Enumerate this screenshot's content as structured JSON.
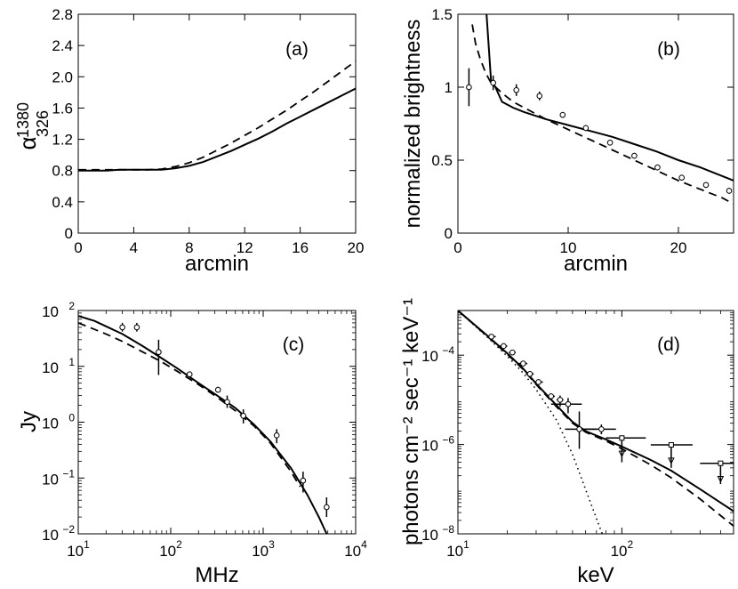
{
  "chart_data": [
    {
      "type": "line",
      "panel_label": "(a)",
      "xlabel": "arcmin",
      "ylabel_base": "α",
      "ylabel_sup": "1380",
      "ylabel_sub": "326",
      "xscale": "linear",
      "yscale": "linear",
      "xlim": [
        0,
        20
      ],
      "ylim": [
        0,
        2.8
      ],
      "xticks": [
        0,
        4,
        8,
        12,
        16,
        20
      ],
      "xtick_labels": [
        "0",
        "4",
        "8",
        "12",
        "16",
        "20"
      ],
      "yticks": [
        0,
        0.4,
        0.8,
        1.2,
        1.6,
        2.0,
        2.4,
        2.8
      ],
      "ytick_labels": [
        "0",
        "0.4",
        "0.8",
        "1.2",
        "1.6",
        "2.0",
        "2.4",
        "2.8"
      ],
      "series": [
        {
          "name": "solid",
          "style": "solid",
          "x": [
            0,
            1,
            2,
            3,
            4,
            5,
            6,
            7,
            8,
            9,
            10,
            11,
            12,
            13,
            14,
            15,
            16,
            17,
            18,
            19,
            20
          ],
          "y": [
            0.8,
            0.8,
            0.8,
            0.81,
            0.81,
            0.81,
            0.81,
            0.83,
            0.86,
            0.91,
            0.98,
            1.05,
            1.13,
            1.21,
            1.3,
            1.4,
            1.49,
            1.58,
            1.67,
            1.76,
            1.85
          ]
        },
        {
          "name": "dashed",
          "style": "dashed",
          "x": [
            0,
            1,
            2,
            3,
            4,
            5,
            6,
            7,
            8,
            9,
            10,
            11,
            12,
            13,
            14,
            15,
            16,
            17,
            18,
            19,
            20
          ],
          "y": [
            0.81,
            0.81,
            0.81,
            0.81,
            0.81,
            0.81,
            0.82,
            0.85,
            0.9,
            0.97,
            1.06,
            1.15,
            1.25,
            1.35,
            1.46,
            1.57,
            1.69,
            1.81,
            1.94,
            2.07,
            2.2
          ]
        }
      ]
    },
    {
      "type": "line",
      "panel_label": "(b)",
      "xlabel": "arcmin",
      "ylabel": "normalized brightness",
      "xscale": "linear",
      "yscale": "linear",
      "xlim": [
        0,
        25
      ],
      "ylim": [
        0,
        1.5
      ],
      "xticks": [
        0,
        10,
        20
      ],
      "xtick_labels": [
        "0",
        "10",
        "20"
      ],
      "yticks": [
        0,
        0.5,
        1,
        1.5
      ],
      "ytick_labels": [
        "0",
        "0.5",
        "1",
        "1.5"
      ],
      "series": [
        {
          "name": "solid",
          "style": "solid",
          "x": [
            2.6,
            3.0,
            3.4,
            4.0,
            5,
            6,
            8,
            10,
            12,
            14,
            16,
            18,
            20,
            22,
            25
          ],
          "y": [
            1.5,
            1.05,
            1.0,
            0.9,
            0.86,
            0.83,
            0.78,
            0.74,
            0.7,
            0.66,
            0.61,
            0.56,
            0.5,
            0.45,
            0.36
          ]
        },
        {
          "name": "dashed",
          "style": "dashed",
          "x": [
            1.3,
            1.6,
            2.0,
            2.5,
            3,
            4,
            5,
            6,
            8,
            10,
            12,
            14,
            16,
            18,
            20,
            22,
            24,
            25
          ],
          "y": [
            1.43,
            1.3,
            1.2,
            1.1,
            1.03,
            0.96,
            0.9,
            0.86,
            0.78,
            0.71,
            0.64,
            0.57,
            0.5,
            0.43,
            0.36,
            0.3,
            0.24,
            0.2
          ]
        },
        {
          "name": "data",
          "style": "points",
          "x": [
            1.0,
            3.2,
            5.3,
            7.4,
            9.5,
            11.6,
            13.8,
            16.0,
            18.1,
            20.3,
            22.5,
            24.6
          ],
          "y": [
            1.0,
            1.03,
            0.98,
            0.94,
            0.81,
            0.72,
            0.62,
            0.53,
            0.45,
            0.38,
            0.33,
            0.29
          ],
          "err": [
            0.13,
            0.05,
            0.04,
            0.03,
            0.02,
            0.02,
            0.02,
            0.02,
            0.02,
            0.02,
            0.02,
            0.02
          ]
        }
      ]
    },
    {
      "type": "line",
      "panel_label": "(c)",
      "xlabel": "MHz",
      "ylabel": "Jy",
      "xscale": "log",
      "yscale": "log",
      "xlim": [
        10,
        10000
      ],
      "ylim": [
        0.01,
        100
      ],
      "xticks": [
        10,
        100,
        1000,
        10000
      ],
      "xtick_base": [
        "10",
        "10",
        "10",
        "10"
      ],
      "xtick_exp": [
        "1",
        "2",
        "3",
        "4"
      ],
      "yticks": [
        0.01,
        0.1,
        1,
        10,
        100
      ],
      "ytick_base": [
        "10",
        "10",
        "10",
        "10",
        "10"
      ],
      "ytick_exp": [
        "−2",
        "−1",
        "0",
        "1",
        "2"
      ],
      "series": [
        {
          "name": "solid",
          "style": "solid",
          "x": [
            10,
            15,
            20,
            30,
            50,
            80,
            120,
            200,
            300,
            500,
            800,
            1200,
            2000,
            3000,
            4000,
            5000
          ],
          "y": [
            80,
            65,
            52,
            38,
            23,
            14,
            9,
            5,
            3.2,
            1.8,
            0.9,
            0.45,
            0.15,
            0.05,
            0.02,
            0.009
          ]
        },
        {
          "name": "dashed",
          "style": "dashed",
          "x": [
            10,
            15,
            20,
            30,
            50,
            80,
            120,
            200,
            300,
            500,
            800,
            1200,
            2000,
            2500
          ],
          "y": [
            60,
            46,
            38,
            28,
            18,
            12,
            8,
            4.7,
            3.0,
            1.6,
            0.85,
            0.42,
            0.13,
            0.07
          ]
        },
        {
          "name": "data",
          "style": "points",
          "x": [
            30,
            43,
            74,
            160,
            325,
            408,
            610,
            1400,
            2700,
            4850
          ],
          "y": [
            50,
            50,
            18,
            7.2,
            3.8,
            2.3,
            1.3,
            0.58,
            0.09,
            0.03
          ],
          "ylo": [
            42,
            42,
            7,
            6.5,
            3.4,
            1.8,
            0.95,
            0.42,
            0.055,
            0.02
          ],
          "yhi": [
            60,
            60,
            30,
            8.0,
            4.3,
            3.0,
            1.7,
            0.75,
            0.13,
            0.045
          ]
        }
      ]
    },
    {
      "type": "line",
      "panel_label": "(d)",
      "xlabel": "keV",
      "ylabel": "photons cm⁻² sec⁻¹ keV⁻¹",
      "xscale": "log",
      "yscale": "log",
      "xlim": [
        10,
        480
      ],
      "ylim": [
        1e-08,
        0.001
      ],
      "xticks": [
        10,
        100
      ],
      "xtick_base": [
        "10",
        "10"
      ],
      "xtick_exp": [
        "1",
        "2"
      ],
      "yticks": [
        1e-08,
        1e-06,
        0.0001
      ],
      "ytick_base": [
        "10",
        "10",
        "10"
      ],
      "ytick_exp": [
        "−8",
        "−6",
        "−4"
      ],
      "series": [
        {
          "name": "solid",
          "style": "solid",
          "x": [
            10,
            15,
            20,
            25,
            30,
            40,
            50,
            60,
            80,
            100,
            150,
            200,
            300,
            480
          ],
          "y": [
            0.001,
            0.00028,
            0.00011,
            5e-05,
            2.3e-05,
            7.5e-06,
            3.2e-06,
            2e-06,
            1.3e-06,
            9e-07,
            4.5e-07,
            2.6e-07,
            1e-07,
            3.2e-08
          ]
        },
        {
          "name": "dashed",
          "style": "dashed",
          "x": [
            10,
            15,
            20,
            25,
            30,
            40,
            50,
            60,
            80,
            100,
            150,
            200,
            300,
            480
          ],
          "y": [
            0.001,
            0.00027,
            0.000105,
            4.8e-05,
            2.2e-05,
            7e-06,
            3e-06,
            1.9e-06,
            1.2e-06,
            8e-07,
            3.5e-07,
            1.8e-07,
            6e-08,
            1.5e-08
          ]
        },
        {
          "name": "dotted",
          "style": "dotted",
          "x": [
            10,
            15,
            20,
            25,
            30,
            40,
            50,
            60,
            70,
            76
          ],
          "y": [
            0.001,
            0.00026,
            9.5e-05,
            4e-05,
            1.7e-05,
            3.5e-06,
            6e-07,
            1e-07,
            2.2e-08,
            1e-08
          ]
        },
        {
          "name": "data",
          "style": "points",
          "x": [
            16,
            19,
            21.5,
            25,
            27.5,
            31,
            37,
            42,
            47,
            55,
            75,
            100,
            200,
            400
          ],
          "y": [
            0.00026,
            0.00016,
            0.000115,
            6.5e-05,
            3.8e-05,
            2.5e-05,
            1.2e-05,
            1e-05,
            8e-06,
            2.2e-06,
            2.2e-06,
            1.4e-06,
            9.8e-07,
            3.8e-07
          ],
          "xlo": [
            15,
            18,
            20.5,
            23.5,
            26,
            29,
            35,
            40,
            37,
            45,
            60,
            80,
            150,
            300
          ],
          "xhi": [
            17,
            20,
            22.5,
            26.5,
            29,
            33,
            39,
            44,
            57,
            70,
            92,
            140,
            270,
            480
          ],
          "ylo": [
            0.00023,
            0.000145,
            0.000105,
            5.8e-05,
            3.4e-05,
            2.2e-05,
            1.05e-05,
            7e-06,
            5e-06,
            8e-07,
            1.7e-06,
            4e-07,
            3e-07,
            1.3e-07
          ],
          "yhi": [
            0.00029,
            0.000175,
            0.000125,
            7.2e-05,
            4.2e-05,
            2.8e-05,
            1.35e-05,
            1.25e-05,
            1.1e-05,
            5.5e-06,
            2.8e-06,
            1.4e-06,
            9.8e-07,
            3.8e-07
          ],
          "upper_limit": [
            false,
            false,
            false,
            false,
            false,
            false,
            false,
            false,
            false,
            false,
            false,
            true,
            true,
            true
          ]
        }
      ]
    }
  ]
}
